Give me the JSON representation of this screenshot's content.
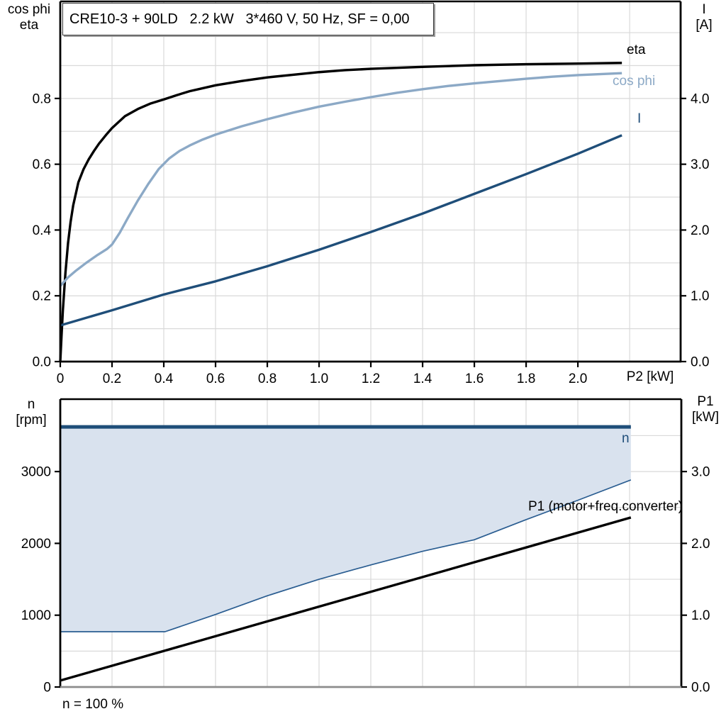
{
  "title": "CRE10-3 + 90LD   2.2 kW   3*460 V, 50 Hz, SF = 0,00",
  "colors": {
    "black_curve": "#000000",
    "dark_blue": "#1f4e79",
    "light_blue": "#8ca9c6",
    "band_fill": "#d9e2ee",
    "band_edge": "#2a5d91",
    "grid": "#d9d9d9",
    "axis": "#000000",
    "baseline_gray": "#8c8c8c"
  },
  "chart_data": [
    {
      "type": "line",
      "title": "CRE10-3 + 90LD   2.2 kW   3*460 V, 50 Hz, SF = 0,00",
      "x_axis": {
        "label": "P2 [kW]",
        "range": [
          0,
          2.397
        ],
        "ticks": [
          0,
          0.2,
          0.4,
          0.6,
          0.8,
          1.0,
          1.2,
          1.4,
          1.6,
          1.8,
          2.0
        ],
        "tick_labels": [
          "0",
          "0.2",
          "0.4",
          "0.6",
          "0.8",
          "1.0",
          "1.2",
          "1.4",
          "1.6",
          "1.8",
          "2.0"
        ],
        "grid_step": 0.2,
        "grid_max": 2.2
      },
      "y_left": {
        "label_lines": [
          "cos phi",
          "eta"
        ],
        "range": [
          0,
          1.095
        ],
        "ticks": [
          0,
          0.2,
          0.4,
          0.6,
          0.8
        ],
        "tick_labels": [
          "0.0",
          "0.2",
          "0.4",
          "0.6",
          "0.8"
        ],
        "grid_step": 0.1,
        "grid_max": 1.0
      },
      "y_right": {
        "label_lines": [
          "I",
          "[A]"
        ],
        "range": [
          0,
          5.475
        ],
        "ticks": [
          0,
          1,
          2,
          3,
          4
        ],
        "tick_labels": [
          "0.0",
          "1.0",
          "2.0",
          "3.0",
          "4.0"
        ]
      },
      "series": [
        {
          "name": "eta",
          "color": "#000000",
          "width": 3.4,
          "axis": "left",
          "points": [
            [
              0,
              0
            ],
            [
              0.005,
              0.08
            ],
            [
              0.01,
              0.155
            ],
            [
              0.02,
              0.27
            ],
            [
              0.03,
              0.36
            ],
            [
              0.04,
              0.425
            ],
            [
              0.05,
              0.475
            ],
            [
              0.07,
              0.545
            ],
            [
              0.09,
              0.585
            ],
            [
              0.11,
              0.615
            ],
            [
              0.13,
              0.64
            ],
            [
              0.15,
              0.663
            ],
            [
              0.18,
              0.692
            ],
            [
              0.2,
              0.71
            ],
            [
              0.25,
              0.746
            ],
            [
              0.3,
              0.768
            ],
            [
              0.35,
              0.785
            ],
            [
              0.4,
              0.797
            ],
            [
              0.45,
              0.81
            ],
            [
              0.5,
              0.822
            ],
            [
              0.6,
              0.84
            ],
            [
              0.7,
              0.853
            ],
            [
              0.8,
              0.864
            ],
            [
              0.9,
              0.872
            ],
            [
              1.0,
              0.88
            ],
            [
              1.1,
              0.886
            ],
            [
              1.2,
              0.89
            ],
            [
              1.4,
              0.896
            ],
            [
              1.6,
              0.901
            ],
            [
              1.8,
              0.904
            ],
            [
              2.0,
              0.906
            ],
            [
              2.17,
              0.908
            ]
          ]
        },
        {
          "name": "cos phi",
          "color": "#8ca9c6",
          "width": 3.4,
          "axis": "left",
          "points": [
            [
              0,
              0.23
            ],
            [
              0.03,
              0.256
            ],
            [
              0.06,
              0.276
            ],
            [
              0.1,
              0.3
            ],
            [
              0.14,
              0.322
            ],
            [
              0.18,
              0.342
            ],
            [
              0.2,
              0.356
            ],
            [
              0.23,
              0.392
            ],
            [
              0.26,
              0.435
            ],
            [
              0.3,
              0.49
            ],
            [
              0.34,
              0.54
            ],
            [
              0.38,
              0.585
            ],
            [
              0.42,
              0.617
            ],
            [
              0.46,
              0.64
            ],
            [
              0.5,
              0.657
            ],
            [
              0.55,
              0.675
            ],
            [
              0.6,
              0.69
            ],
            [
              0.7,
              0.715
            ],
            [
              0.8,
              0.737
            ],
            [
              0.9,
              0.757
            ],
            [
              1.0,
              0.775
            ],
            [
              1.1,
              0.79
            ],
            [
              1.2,
              0.804
            ],
            [
              1.3,
              0.817
            ],
            [
              1.4,
              0.828
            ],
            [
              1.5,
              0.838
            ],
            [
              1.6,
              0.846
            ],
            [
              1.7,
              0.853
            ],
            [
              1.8,
              0.86
            ],
            [
              1.9,
              0.866
            ],
            [
              2.0,
              0.871
            ],
            [
              2.17,
              0.877
            ]
          ]
        },
        {
          "name": "I",
          "color": "#1f4e79",
          "width": 3.4,
          "axis": "right",
          "points": [
            [
              0,
              0.55
            ],
            [
              0.2,
              0.78
            ],
            [
              0.4,
              1.02
            ],
            [
              0.6,
              1.22
            ],
            [
              0.8,
              1.45
            ],
            [
              1.0,
              1.7
            ],
            [
              1.2,
              1.97
            ],
            [
              1.4,
              2.25
            ],
            [
              1.6,
              2.55
            ],
            [
              1.8,
              2.85
            ],
            [
              2.0,
              3.16
            ],
            [
              2.17,
              3.44
            ]
          ]
        }
      ]
    },
    {
      "type": "line",
      "x_axis": {
        "label": "",
        "range": [
          0,
          2.4
        ],
        "ticks": [],
        "tick_labels": [],
        "grid_step": 0.2,
        "grid_max": 2.2
      },
      "y_left": {
        "label_lines": [
          "n",
          "[rpm]"
        ],
        "range": [
          0,
          4008
        ],
        "ticks": [
          0,
          1000,
          2000,
          3000
        ],
        "tick_labels": [
          "0",
          "1000",
          "2000",
          "3000"
        ],
        "grid_step": 500,
        "grid_max": 3500
      },
      "y_right": {
        "label_lines": [
          "P1",
          "[kW]"
        ],
        "range": [
          0,
          4.008
        ],
        "ticks": [
          0,
          1,
          2,
          3
        ],
        "tick_labels": [
          "0.0",
          "1.0",
          "2.0",
          "3.0"
        ]
      },
      "area": {
        "name": "speed-operating-range",
        "fill": "#d9e2ee",
        "axis": "left",
        "upper": [
          [
            0,
            3622
          ],
          [
            2.205,
            3622
          ]
        ],
        "lower": [
          [
            0,
            770
          ],
          [
            0.405,
            770
          ],
          [
            0.6,
            1010
          ],
          [
            0.8,
            1270
          ],
          [
            1.0,
            1500
          ],
          [
            1.2,
            1700
          ],
          [
            1.4,
            1890
          ],
          [
            1.6,
            2050
          ],
          [
            1.8,
            2330
          ],
          [
            2.0,
            2600
          ],
          [
            2.205,
            2883
          ]
        ]
      },
      "series": [
        {
          "name": "n",
          "color": "#1f4e79",
          "width": 5,
          "axis": "left",
          "points": [
            [
              0,
              3622
            ],
            [
              2.205,
              3622
            ]
          ]
        },
        {
          "name": "minimum-speed-boundary",
          "color": "#2a5d91",
          "width": 1.7,
          "axis": "left",
          "points": [
            [
              0,
              770
            ],
            [
              0.405,
              770
            ],
            [
              0.6,
              1010
            ],
            [
              0.8,
              1270
            ],
            [
              1.0,
              1500
            ],
            [
              1.2,
              1700
            ],
            [
              1.4,
              1890
            ],
            [
              1.6,
              2050
            ],
            [
              1.8,
              2330
            ],
            [
              2.0,
              2600
            ],
            [
              2.205,
              2883
            ]
          ]
        },
        {
          "name": "P1 (motor+freq.converter)",
          "color": "#000000",
          "width": 3.4,
          "axis": "right",
          "points": [
            [
              0,
              0.09
            ],
            [
              2.205,
              2.36
            ]
          ]
        }
      ],
      "footnote": "n = 100 %"
    }
  ]
}
